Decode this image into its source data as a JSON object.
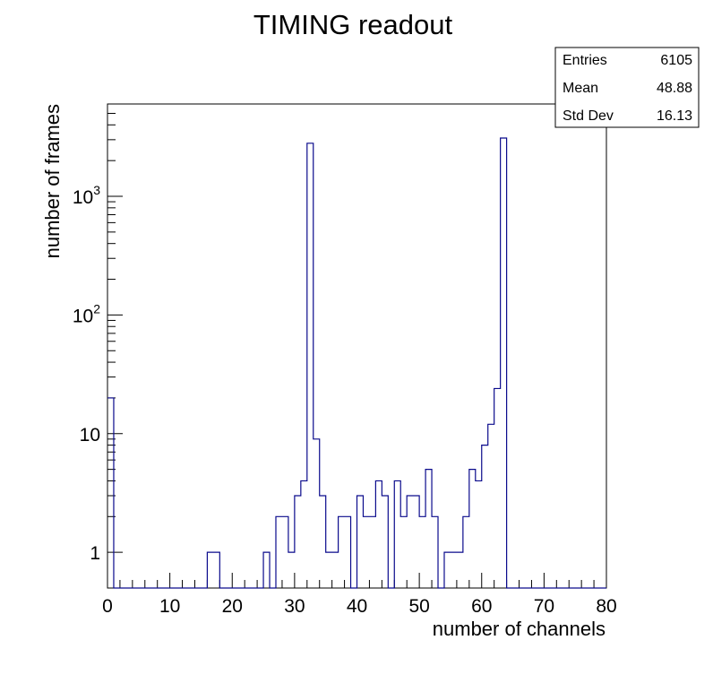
{
  "chart_data": {
    "type": "bar",
    "subtype": "histogram-step",
    "title": "TIMING readout",
    "xlabel": "number of channels",
    "ylabel": "number of frames",
    "xlim": [
      0,
      80
    ],
    "ylim": [
      0.5,
      6000
    ],
    "y_scale": "log",
    "bin_width": 1,
    "bin_start": 0,
    "x_major_ticks": [
      0,
      10,
      20,
      30,
      40,
      50,
      60,
      70,
      80
    ],
    "x_tick_labels": [
      "0",
      "10",
      "20",
      "30",
      "40",
      "50",
      "60",
      "70",
      "80"
    ],
    "y_major_ticks": [
      1,
      10,
      100,
      1000
    ],
    "y_tick_labels": [
      {
        "base": "1",
        "exp": ""
      },
      {
        "base": "10",
        "exp": ""
      },
      {
        "base": "10",
        "exp": "2"
      },
      {
        "base": "10",
        "exp": "3"
      }
    ],
    "line_color": "#0a0a8c",
    "grid": false,
    "legend": "none",
    "series": [
      {
        "values": [
          20,
          0,
          0,
          0,
          0,
          0,
          0,
          0,
          0,
          0,
          0,
          0,
          0,
          0,
          0,
          0,
          1,
          1,
          0,
          0,
          0,
          0,
          0,
          0,
          0,
          1,
          0,
          2,
          2,
          1,
          3,
          4,
          2800,
          9,
          3,
          1,
          1,
          2,
          2,
          0,
          3,
          2,
          2,
          4,
          3,
          0,
          4,
          2,
          3,
          3,
          2,
          5,
          2,
          0,
          1,
          1,
          1,
          2,
          5,
          4,
          8,
          12,
          24,
          3100,
          0,
          0,
          0,
          0,
          0,
          0,
          0,
          0,
          0,
          0,
          0,
          0,
          0,
          0,
          0,
          0
        ]
      }
    ],
    "stats_box": {
      "rows": [
        {
          "label": "Entries",
          "value": "6105"
        },
        {
          "label": "Mean",
          "value": "48.88"
        },
        {
          "label": "Std Dev",
          "value": "16.13"
        }
      ],
      "placement": "top-right"
    }
  }
}
